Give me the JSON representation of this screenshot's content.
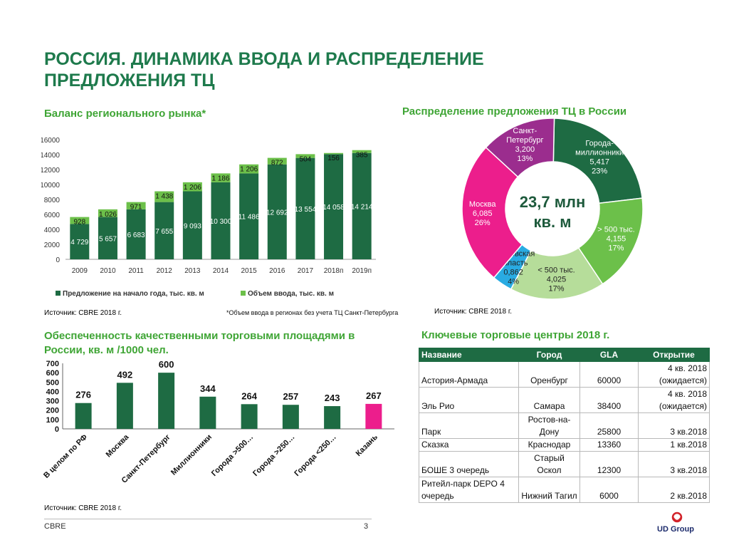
{
  "page": {
    "title": "РОССИЯ. ДИНАМИКА ВВОДА И РАСПРЕДЕЛЕНИЕ ПРЕДЛОЖЕНИЯ ТЦ",
    "footer_brand": "CBRE",
    "page_number": "3",
    "logo_text": "UD Group"
  },
  "colors": {
    "title": "#1e7a4c",
    "section": "#3fa535",
    "dark_green": "#1e6b43",
    "light_green": "#6cc04a",
    "magenta": "#ec1e8c"
  },
  "sections": {
    "balance_title": "Баланс регионального рынка*",
    "distribution_title": "Распределение предложения ТЦ в России",
    "provision_title_line1": "Обеспеченность качественными торговыми площадями в",
    "provision_title_line2": "России, кв. м /1000 чел.",
    "key_centers_title": "Ключевые торговые центры 2018 г."
  },
  "notes": {
    "source_bar": "Источник: CBRE 2018 г.",
    "footnote": "*Объем ввода в регионах без учета ТЦ Санкт-Петербурга",
    "source_donut": "Источник: CBRE 2018 г.",
    "source_provision": "Источник: CBRE 2018 г."
  },
  "chart_data": [
    {
      "type": "bar",
      "stacked": true,
      "title": "Баланс регионального рынка*",
      "categories": [
        "2009",
        "2010",
        "2011",
        "2012",
        "2013",
        "2014",
        "2015",
        "2016",
        "2017",
        "2018п",
        "2019п"
      ],
      "series": [
        {
          "name": "Предложение на начало года, тыс. кв. м",
          "color": "#1e6b43",
          "values": [
            4729,
            5657,
            6683,
            7655,
            9093,
            10300,
            11486,
            12692,
            13554,
            14058,
            14214
          ],
          "labels": [
            "4 729",
            "5 657",
            "6 683",
            "7 655",
            "9 093",
            "10 300",
            "11 486",
            "12 692",
            "13 554",
            "14 058",
            "14 214"
          ]
        },
        {
          "name": "Объем ввода, тыс. кв. м",
          "color": "#6cc04a",
          "values": [
            928,
            1026,
            971,
            1438,
            1206,
            1186,
            1206,
            872,
            504,
            156,
            385
          ],
          "labels": [
            "928",
            "1 026",
            "971",
            "1 438",
            "1 206",
            "1 186",
            "1 206",
            "872",
            "504",
            "156",
            "385"
          ]
        }
      ],
      "ylim": [
        0,
        16000
      ],
      "yticks": [
        "0",
        "2000",
        "4000",
        "6000",
        "8000",
        "10000",
        "12000",
        "14000",
        "16000"
      ],
      "legend_position": "bottom"
    },
    {
      "type": "pie",
      "donut": true,
      "title": "Распределение предложения ТЦ в России",
      "center_label_line1": "23,7 млн",
      "center_label_line2": "кв. м",
      "slices": [
        {
          "name_lines": [
            "Города-",
            "миллионники"
          ],
          "value": 5417,
          "value_label": "5,417",
          "percent": "23%",
          "color": "#1e6b43"
        },
        {
          "name_lines": [
            "> 500 тыс."
          ],
          "value": 4155,
          "value_label": "4,155",
          "percent": "17%",
          "color": "#6cc04a"
        },
        {
          "name_lines": [
            "< 500 тыс."
          ],
          "value": 4025,
          "value_label": "4,025",
          "percent": "17%",
          "color": "#b6dd9a"
        },
        {
          "name_lines": [
            "Московская",
            "область"
          ],
          "value": 862,
          "value_label": "0,862",
          "percent": "4%",
          "color": "#29abe2"
        },
        {
          "name_lines": [
            "Москва"
          ],
          "value": 6085,
          "value_label": "6,085",
          "percent": "26%",
          "color": "#ec1e8c"
        },
        {
          "name_lines": [
            "Санкт-",
            "Петербург"
          ],
          "value": 3200,
          "value_label": "3,200",
          "percent": "13%",
          "color": "#9b2d8e"
        }
      ]
    },
    {
      "type": "bar",
      "title": "Обеспеченность качественными торговыми площадями в России, кв. м /1000 чел.",
      "categories": [
        "В целом по РФ",
        "Москва",
        "Санкт-Петербург",
        "Миллионники",
        "Города >500…",
        "Города >250…",
        "Города <250…",
        "Казань"
      ],
      "values": [
        276,
        492,
        600,
        344,
        264,
        257,
        243,
        267
      ],
      "value_labels": [
        "276",
        "492",
        "600",
        "344",
        "264",
        "257",
        "243",
        "267"
      ],
      "colors": [
        "#1e6b43",
        "#1e6b43",
        "#1e6b43",
        "#1e6b43",
        "#1e6b43",
        "#1e6b43",
        "#1e6b43",
        "#ec1e8c"
      ],
      "ylim": [
        0,
        700
      ],
      "yticks": [
        "0",
        "100",
        "200",
        "300",
        "400",
        "500",
        "600",
        "700"
      ]
    },
    {
      "type": "table",
      "title": "Ключевые торговые центры 2018 г.",
      "headers": [
        "Название",
        "Город",
        "GLA",
        "Открытие"
      ],
      "rows": [
        {
          "name": "Астория-Армада",
          "city": "Оренбург",
          "gla": "60000",
          "opening": "4 кв. 2018 (ожидается)"
        },
        {
          "name": "Эль Рио",
          "city": "Самара",
          "gla": "38400",
          "opening": "4 кв. 2018 (ожидается)"
        },
        {
          "name": "Парк",
          "city": "Ростов-на-Дону",
          "gla": "25800",
          "opening": "3 кв.2018"
        },
        {
          "name": "Сказка",
          "city": "Краснодар",
          "gla": "13360",
          "opening": "1 кв.2018"
        },
        {
          "name": "БОШЕ 3 очередь",
          "city": "Старый Оскол",
          "gla": "12300",
          "opening": "3 кв.2018"
        },
        {
          "name": "Ритейл-парк DEPO 4 очередь",
          "city": "Нижний Тагил",
          "gla": "6000",
          "opening": "2 кв.2018"
        }
      ]
    }
  ]
}
